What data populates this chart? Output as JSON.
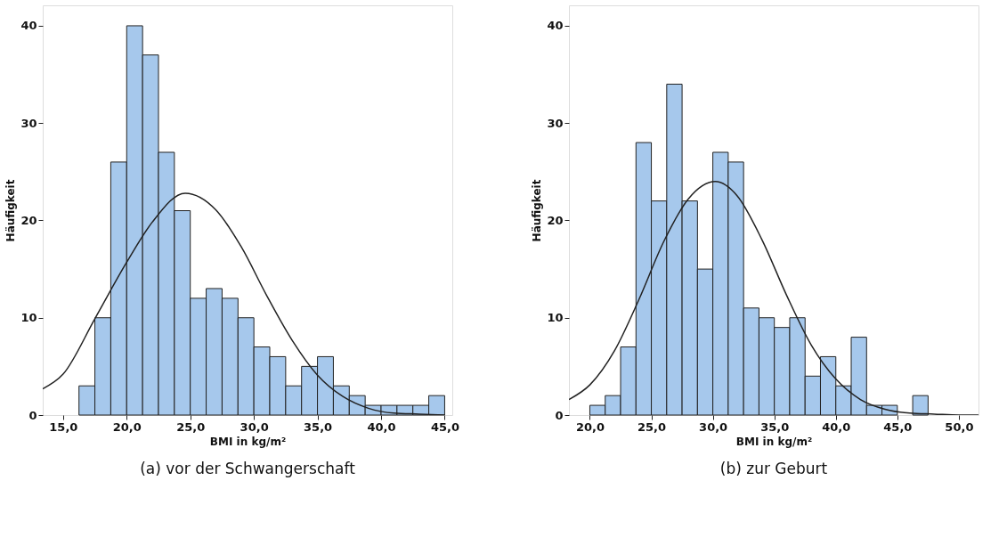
{
  "chart_data": [
    {
      "type": "histogram",
      "title": "(a) vor der Schwangerschaft",
      "xlabel": "BMI in kg/m²",
      "ylabel": "Häufigkeit",
      "color": "#a6c8ec",
      "bins": [
        16.25,
        17.5,
        18.75,
        20,
        21.25,
        22.5,
        23.75,
        25,
        26.25,
        27.5,
        28.75,
        30,
        31.25,
        32.5,
        33.75,
        35,
        36.25,
        37.5,
        38.75,
        40,
        41.25,
        42.5,
        43.75,
        45
      ],
      "values": [
        3,
        10,
        26,
        40,
        37,
        27,
        21,
        12,
        13,
        12,
        10,
        7,
        6,
        3,
        5,
        6,
        3,
        2,
        1,
        1,
        1,
        1,
        2
      ],
      "series": [
        {
          "type": "line",
          "color": "#222222",
          "x": [
            13.4,
            15,
            17.5,
            20,
            22,
            24.6,
            27,
            29,
            31,
            33,
            35,
            37,
            39,
            41,
            43,
            45
          ],
          "values": [
            2.7,
            4.2,
            9.9,
            15.7,
            19.8,
            22.8,
            21.1,
            17.3,
            12.3,
            7.7,
            4.1,
            1.9,
            0.7,
            0.2,
            0.1,
            0
          ]
        }
      ],
      "xlim": [
        13.4,
        45.6
      ],
      "ylim": [
        0,
        42.1
      ],
      "xticks": [
        {
          "value": 15,
          "label": "15,0"
        },
        {
          "value": 20,
          "label": "20,0"
        },
        {
          "value": 25,
          "label": "25,0"
        },
        {
          "value": 30,
          "label": "30,0"
        },
        {
          "value": 35,
          "label": "35,0"
        },
        {
          "value": 40,
          "label": "40,0"
        },
        {
          "value": 45,
          "label": "45,0"
        }
      ],
      "yticks": [
        0,
        10,
        20,
        30,
        40
      ]
    },
    {
      "type": "histogram",
      "title": "(b) zur Geburt",
      "xlabel": "BMI in kg/m²",
      "ylabel": "Häufigkeit",
      "color": "#a6c8ec",
      "bins": [
        20,
        21.25,
        22.5,
        23.75,
        25,
        26.25,
        27.5,
        28.75,
        30,
        31.25,
        32.5,
        33.75,
        35,
        36.25,
        37.5,
        38.75,
        40,
        41.25,
        42.5,
        43.75,
        45,
        46.25,
        47.5
      ],
      "values": [
        1,
        2,
        7,
        28,
        22,
        34,
        22,
        15,
        27,
        26,
        11,
        10,
        9,
        10,
        4,
        6,
        3,
        8,
        1,
        1,
        0,
        2
      ],
      "series": [
        {
          "type": "line",
          "color": "#222222",
          "x": [
            18.3,
            20,
            22,
            24,
            26,
            28,
            30.2,
            32,
            34,
            36,
            38,
            40,
            42,
            44,
            46,
            48,
            50,
            51.6
          ],
          "values": [
            1.6,
            3.1,
            6.6,
            11.9,
            17.8,
            22.2,
            24,
            22.5,
            18,
            12.3,
            7.2,
            3.7,
            1.6,
            0.6,
            0.2,
            0.1,
            0,
            0
          ]
        }
      ],
      "xlim": [
        18.3,
        51.6
      ],
      "ylim": [
        0,
        42.1
      ],
      "xticks": [
        {
          "value": 20,
          "label": "20,0"
        },
        {
          "value": 25,
          "label": "25,0"
        },
        {
          "value": 30,
          "label": "30,0"
        },
        {
          "value": 35,
          "label": "35,0"
        },
        {
          "value": 40,
          "label": "40,0"
        },
        {
          "value": 45,
          "label": "45,0"
        },
        {
          "value": 50,
          "label": "50,0"
        }
      ],
      "yticks": [
        0,
        10,
        20,
        30,
        40
      ]
    }
  ]
}
